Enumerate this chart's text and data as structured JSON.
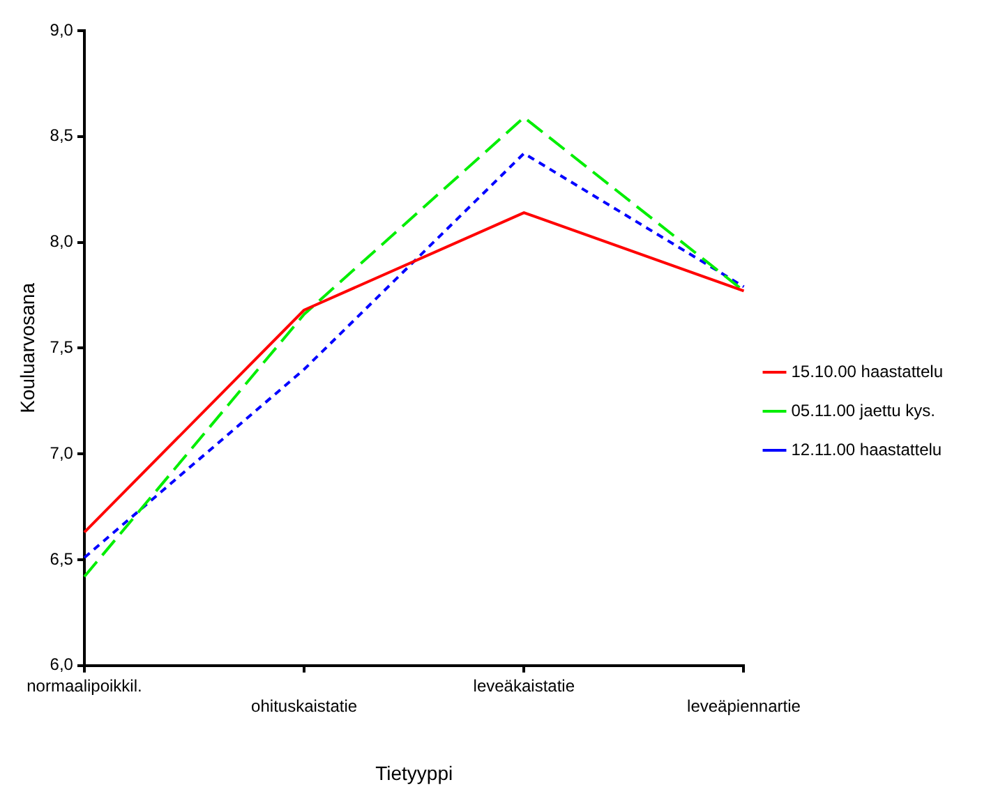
{
  "chart_data": {
    "type": "line",
    "xlabel": "Tietyyppi",
    "ylabel": "Kouluarvosana",
    "categories": [
      "normaalipoikkil.",
      "ohituskaistatie",
      "leveäkaistatie",
      "leveäpiennartie"
    ],
    "series": [
      {
        "name": "15.10.00 haastattelu",
        "color": "#ff0000",
        "line_style": "solid",
        "values": [
          6.63,
          7.68,
          8.14,
          7.77
        ]
      },
      {
        "name": "05.11.00 jaettu kys.",
        "color": "#00ee00",
        "line_style": "dashed",
        "values": [
          6.42,
          7.66,
          8.59,
          7.77
        ]
      },
      {
        "name": "12.11.00 haastattelu",
        "color": "#0000ff",
        "line_style": "dotted",
        "values": [
          6.51,
          7.4,
          8.42,
          7.79
        ]
      }
    ],
    "ylim": [
      6,
      9
    ],
    "yticks": [
      {
        "value": 6,
        "label": "6,0"
      },
      {
        "value": 6.5,
        "label": "6,5"
      },
      {
        "value": 7,
        "label": "7,0"
      },
      {
        "value": 7.5,
        "label": "7,5"
      },
      {
        "value": 8,
        "label": "8,0"
      },
      {
        "value": 8.5,
        "label": "8,5"
      },
      {
        "value": 9,
        "label": "9,0"
      }
    ],
    "grid": false,
    "legend": "right",
    "marker": "none"
  }
}
